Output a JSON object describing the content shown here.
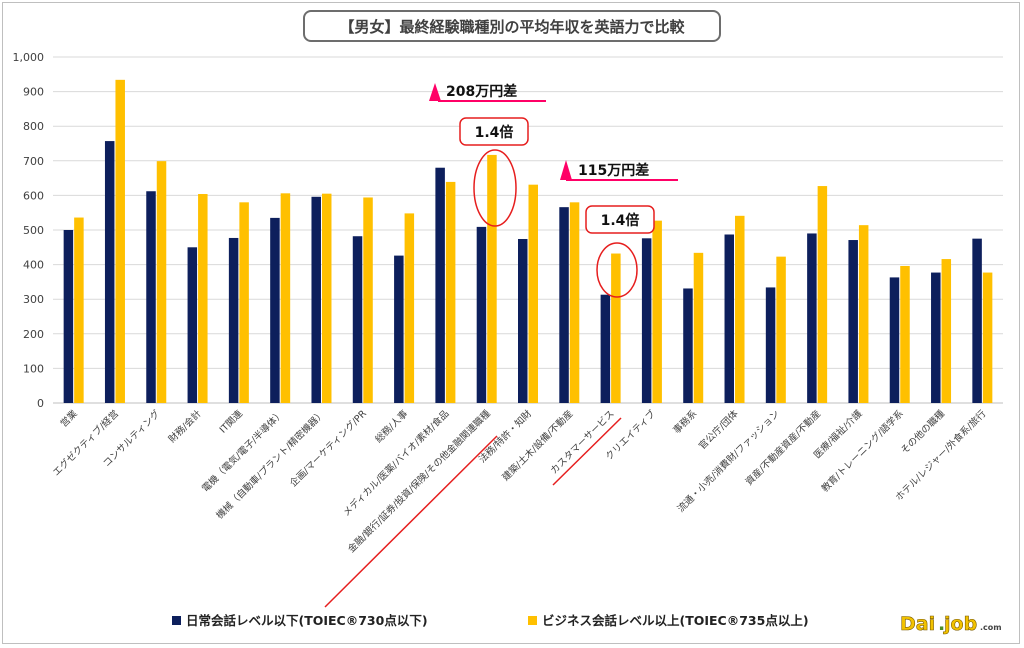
{
  "title": "【男女】最終経験職種別の平均年収を英語力で比較",
  "colors": {
    "series1": "#0d1f5c",
    "series2": "#ffc000",
    "accent": "#ff0066",
    "circle": "#e61e1e",
    "axis": "#d9d9d9"
  },
  "legend": {
    "series1": "日常会話レベル以下(TOIEC®730点以下)",
    "series2": "ビジネス会話レベル以上(TOIEC®735点以上)"
  },
  "logo": {
    "text": "Dai",
    "dot": ".",
    "text2": "job",
    "suffix": ".com"
  },
  "annotations": {
    "diff1": "208万円差",
    "ratio1": "1.4倍",
    "diff2": "115万円差",
    "ratio2": "1.4倍"
  },
  "chart_data": {
    "type": "bar",
    "title": "【男女】最終経験職種別の平均年収を英語力で比較",
    "ylim": [
      0,
      1000
    ],
    "yticks": [
      "0",
      "100",
      "200",
      "300",
      "400",
      "500",
      "600",
      "700",
      "800",
      "900",
      "1,000"
    ],
    "grid": true,
    "legend_position": "bottom",
    "categories": [
      "営業",
      "エグゼクティブ/経営",
      "コンサルティング",
      "財務/会計",
      "IT関連",
      "電機（電気/電子/半導体）",
      "機械（自動車/プラント/精密機器）",
      "企画/マーケティング/PR",
      "総務/人事",
      "メディカル/医薬/バイオ/素材/食品",
      "金融/銀行/証券/投資/保険/その他金融関連職種",
      "法務/特許・知財",
      "建築/土木/設備/不動産",
      "カスタマーサービス",
      "クリエイティブ",
      "事務系",
      "官公庁/団体",
      "流通・小売/消費財/ファッション",
      "資産/不動産資産/不動産",
      "医療/福祉/介護",
      "教育/トレーニング/語学系",
      "その他の職種",
      "ホテル/レジャー/外食系/旅行"
    ],
    "series": [
      {
        "name": "日常会話レベル以下(TOIEC®730点以下)",
        "values": [
          500,
          757,
          612,
          450,
          477,
          535,
          596,
          482,
          426,
          680,
          509,
          474,
          566,
          313,
          476,
          331,
          487,
          334,
          490,
          471,
          363,
          377,
          475
        ]
      },
      {
        "name": "ビジネス会話レベル以上(TOIEC®735点以上)",
        "values": [
          536,
          934,
          699,
          604,
          580,
          606,
          605,
          594,
          548,
          639,
          717,
          631,
          580,
          432,
          527,
          434,
          541,
          423,
          627,
          514,
          396,
          416,
          377
        ]
      }
    ]
  }
}
